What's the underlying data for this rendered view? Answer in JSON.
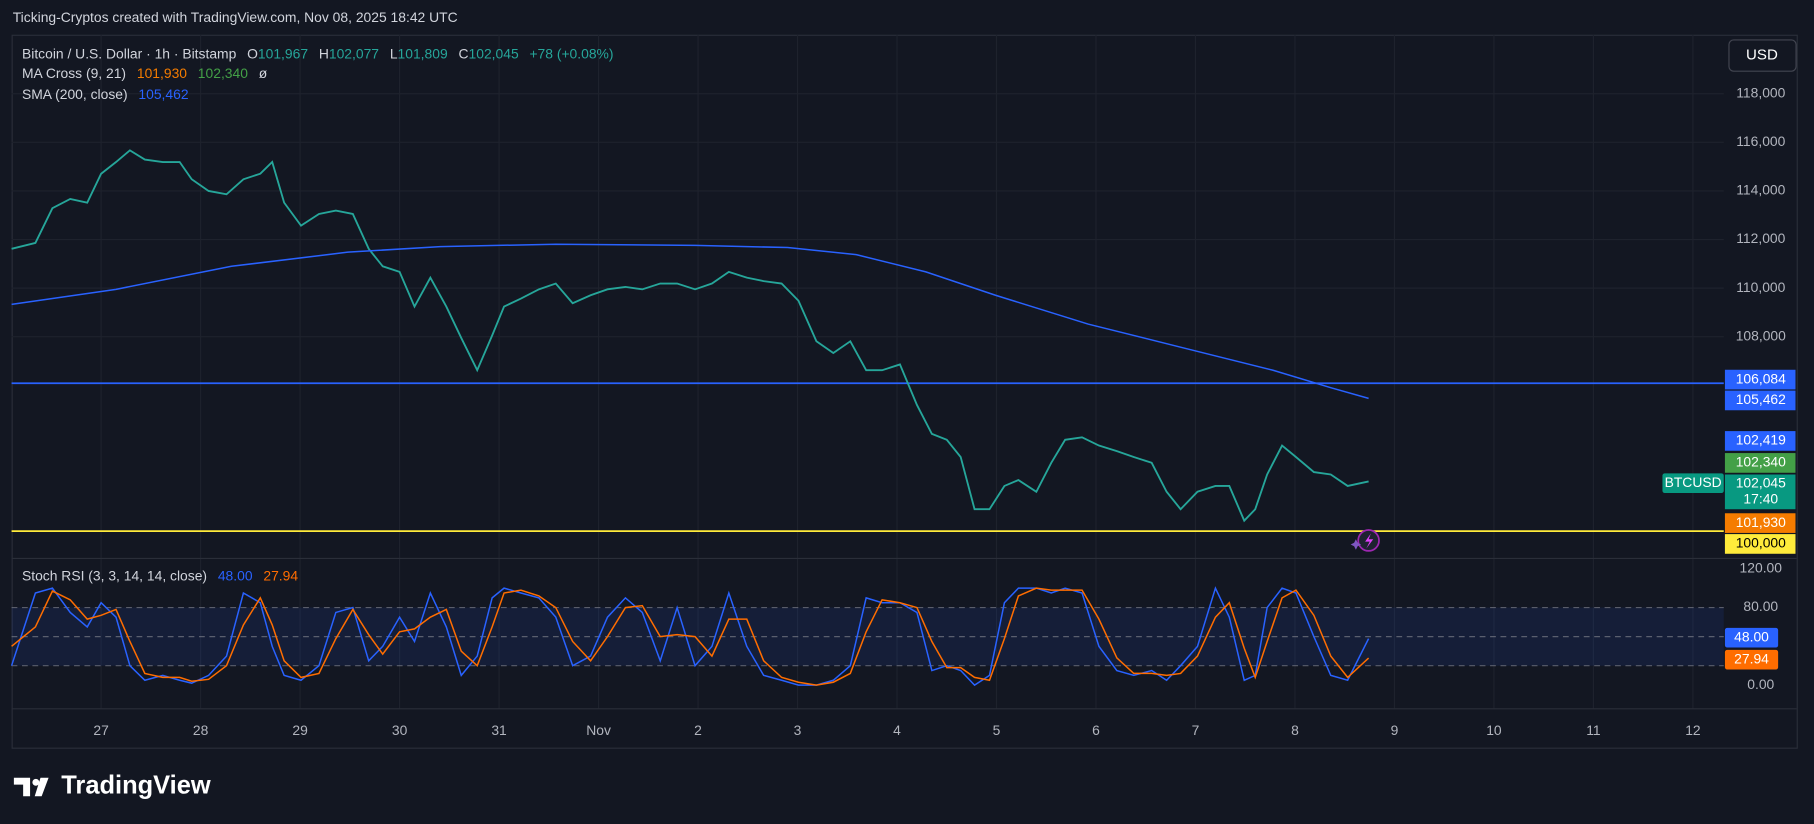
{
  "header": "Ticking-Cryptos created with TradingView.com, Nov 08, 2025 18:42 UTC",
  "currency_button": "USD",
  "brand": "TradingView",
  "legend": {
    "symbol": "Bitcoin / U.S. Dollar · 1h · Bitstamp",
    "ohlc": [
      {
        "key": "O",
        "value": "101,967"
      },
      {
        "key": "H",
        "value": "102,077"
      },
      {
        "key": "L",
        "value": "101,809"
      },
      {
        "key": "C",
        "value": "102,045"
      }
    ],
    "change": "+78 (+0.08%)",
    "ma_name": "MA Cross (9, 21)",
    "ma_fast": "101,930",
    "ma_slow": "102,340",
    "ma_extra": "ø",
    "sma_name": "SMA (200, close)",
    "sma_value": "105,462"
  },
  "chart_data": [
    {
      "type": "line",
      "xlim": [
        26.1,
        43.31
      ],
      "xticks": [
        {
          "value": 27,
          "label": "27"
        },
        {
          "value": 28,
          "label": "28"
        },
        {
          "value": 29,
          "label": "29"
        },
        {
          "value": 30,
          "label": "30"
        },
        {
          "value": 31,
          "label": "31"
        },
        {
          "value": 32,
          "label": "Nov"
        },
        {
          "value": 33,
          "label": "2"
        },
        {
          "value": 34,
          "label": "3"
        },
        {
          "value": 35,
          "label": "4"
        },
        {
          "value": 36,
          "label": "5"
        },
        {
          "value": 37,
          "label": "6"
        },
        {
          "value": 38,
          "label": "7"
        },
        {
          "value": 39,
          "label": "8"
        },
        {
          "value": 40,
          "label": "9"
        },
        {
          "value": 41,
          "label": "10"
        },
        {
          "value": 42,
          "label": "11"
        },
        {
          "value": 43,
          "label": "12"
        }
      ],
      "ylim": [
        98900,
        120430
      ],
      "yticks": [
        {
          "value": 108000,
          "label": "108,000"
        },
        {
          "value": 110000,
          "label": "110,000"
        },
        {
          "value": 112000,
          "label": "112,000"
        },
        {
          "value": 114000,
          "label": "114,000"
        },
        {
          "value": 116000,
          "label": "116,000"
        },
        {
          "value": 118000,
          "label": "118,000"
        }
      ],
      "grid": true,
      "hlines": [
        {
          "value": 106084,
          "color": "#2962ff"
        },
        {
          "value": 100000,
          "color": "#ffeb3b"
        }
      ],
      "series": [
        {
          "name": "BTCUSD",
          "color": "#26a69a",
          "x": [
            26.1,
            26.34,
            26.51,
            26.69,
            26.86,
            27,
            27.15,
            27.29,
            27.44,
            27.62,
            27.79,
            27.91,
            28.08,
            28.26,
            28.43,
            28.6,
            28.72,
            28.84,
            29.01,
            29.19,
            29.36,
            29.53,
            29.69,
            29.83,
            30,
            30.15,
            30.31,
            30.47,
            30.62,
            30.78,
            30.93,
            31.05,
            31.22,
            31.4,
            31.57,
            31.74,
            31.92,
            32.09,
            32.27,
            32.44,
            32.62,
            32.79,
            32.97,
            33.14,
            33.31,
            33.49,
            33.66,
            33.84,
            34.01,
            34.19,
            34.36,
            34.53,
            34.69,
            34.85,
            35.03,
            35.2,
            35.35,
            35.5,
            35.64,
            35.78,
            35.93,
            36.08,
            36.22,
            36.4,
            36.55,
            36.69,
            36.86,
            37.03,
            37.21,
            37.38,
            37.56,
            37.71,
            37.85,
            38.02,
            38.2,
            38.34,
            38.49,
            38.6,
            38.72,
            38.87,
            39.01,
            39.19,
            39.36,
            39.53,
            39.74
          ],
          "values": [
            111620,
            111860,
            113290,
            113670,
            113520,
            114710,
            115190,
            115670,
            115290,
            115190,
            115190,
            114480,
            114000,
            113860,
            114480,
            114710,
            115190,
            113520,
            112570,
            113050,
            113190,
            113050,
            111620,
            110900,
            110670,
            109240,
            110430,
            109240,
            107950,
            106620,
            108050,
            109240,
            109570,
            109950,
            110190,
            109380,
            109710,
            109950,
            110050,
            109950,
            110190,
            110190,
            109950,
            110190,
            110670,
            110430,
            110290,
            110190,
            109480,
            107810,
            107330,
            107810,
            106620,
            106620,
            106860,
            105190,
            104000,
            103760,
            103050,
            100900,
            100900,
            101860,
            102100,
            101620,
            102810,
            103760,
            103860,
            103520,
            103290,
            103050,
            102810,
            101620,
            100900,
            101620,
            101860,
            101860,
            100430,
            100900,
            102330,
            103520,
            103050,
            102430,
            102330,
            101860,
            102045
          ]
        },
        {
          "name": "SMA (200, close)",
          "color": "#2962ff",
          "x": [
            26.1,
            27.15,
            28.31,
            29.48,
            30.41,
            31.57,
            32.97,
            33.9,
            34.59,
            35.29,
            35.99,
            36.92,
            37.85,
            38.78,
            39.36,
            39.74
          ],
          "values": [
            109330,
            109950,
            110900,
            111480,
            111710,
            111810,
            111760,
            111670,
            111380,
            110670,
            109710,
            108520,
            107570,
            106620,
            105900,
            105462
          ]
        }
      ],
      "axis_labels": [
        {
          "label": "106,084",
          "color": "#2962ff"
        },
        {
          "label": "105,462",
          "color": "#2962ff"
        },
        {
          "label": "102,419",
          "color": "#2962ff"
        },
        {
          "label": "102,340",
          "color": "#43a047"
        },
        {
          "label": "102,045",
          "color": "#089981",
          "symbol": "BTCUSD",
          "time": "17:40"
        },
        {
          "label": "101,930",
          "color": "#f57c00"
        },
        {
          "label": "100,000",
          "color": "#ffeb3b",
          "text_color": "#000000"
        }
      ]
    },
    {
      "type": "line",
      "title": "Stoch RSI (3, 3, 14, 14, close)",
      "xlim": [
        26.1,
        43.31
      ],
      "ylim": [
        -23.9,
        130.1
      ],
      "yticks": [
        {
          "value": 0,
          "label": "0.00"
        },
        {
          "value": 80,
          "label": "80.00"
        },
        {
          "value": 120,
          "label": "120.00"
        }
      ],
      "bands": [
        80,
        50,
        20
      ],
      "series": [
        {
          "name": "K",
          "color": "#2962ff",
          "x": [
            26.1,
            26.34,
            26.51,
            26.69,
            26.86,
            27,
            27.15,
            27.29,
            27.44,
            27.62,
            27.79,
            27.91,
            28.08,
            28.26,
            28.43,
            28.6,
            28.72,
            28.84,
            29.01,
            29.19,
            29.36,
            29.53,
            29.69,
            29.83,
            30,
            30.15,
            30.31,
            30.47,
            30.62,
            30.78,
            30.93,
            31.05,
            31.22,
            31.4,
            31.57,
            31.74,
            31.92,
            32.09,
            32.27,
            32.44,
            32.62,
            32.79,
            32.97,
            33.14,
            33.31,
            33.49,
            33.66,
            33.84,
            34.01,
            34.19,
            34.36,
            34.53,
            34.69,
            34.85,
            35.03,
            35.2,
            35.35,
            35.5,
            35.64,
            35.78,
            35.93,
            36.08,
            36.22,
            36.4,
            36.55,
            36.69,
            36.86,
            37.03,
            37.21,
            37.38,
            37.56,
            37.71,
            37.85,
            38.02,
            38.2,
            38.34,
            38.49,
            38.6,
            38.72,
            38.87,
            39.01,
            39.19,
            39.36,
            39.53,
            39.74
          ],
          "values": [
            20,
            95,
            100,
            75,
            60,
            85,
            70,
            20,
            5,
            10,
            5,
            2,
            10,
            30,
            95,
            85,
            40,
            10,
            5,
            20,
            75,
            80,
            25,
            40,
            70,
            45,
            95,
            60,
            10,
            30,
            90,
            100,
            95,
            90,
            70,
            20,
            30,
            70,
            90,
            75,
            25,
            80,
            20,
            40,
            95,
            40,
            10,
            5,
            0,
            0,
            5,
            20,
            90,
            85,
            85,
            75,
            15,
            20,
            15,
            0,
            10,
            85,
            100,
            100,
            95,
            100,
            95,
            40,
            15,
            10,
            15,
            5,
            20,
            40,
            100,
            70,
            5,
            10,
            80,
            100,
            95,
            50,
            10,
            5,
            48
          ]
        },
        {
          "name": "D",
          "color": "#ff6d00",
          "x": [
            26.1,
            26.34,
            26.51,
            26.69,
            26.86,
            27,
            27.15,
            27.29,
            27.44,
            27.62,
            27.79,
            27.91,
            28.08,
            28.26,
            28.43,
            28.6,
            28.72,
            28.84,
            29.01,
            29.19,
            29.36,
            29.53,
            29.69,
            29.83,
            30,
            30.15,
            30.31,
            30.47,
            30.62,
            30.78,
            30.93,
            31.05,
            31.22,
            31.4,
            31.57,
            31.74,
            31.92,
            32.09,
            32.27,
            32.44,
            32.62,
            32.79,
            32.97,
            33.14,
            33.31,
            33.49,
            33.66,
            33.84,
            34.01,
            34.19,
            34.36,
            34.53,
            34.69,
            34.85,
            35.03,
            35.2,
            35.35,
            35.5,
            35.64,
            35.78,
            35.93,
            36.08,
            36.22,
            36.4,
            36.55,
            36.69,
            36.86,
            37.03,
            37.21,
            37.38,
            37.56,
            37.71,
            37.85,
            38.02,
            38.2,
            38.34,
            38.49,
            38.6,
            38.72,
            38.87,
            39.01,
            39.19,
            39.36,
            39.53,
            39.74
          ],
          "values": [
            40,
            60,
            97,
            88,
            68,
            72,
            78,
            45,
            12,
            8,
            8,
            4,
            6,
            20,
            62,
            90,
            62,
            25,
            8,
            12,
            48,
            78,
            52,
            32,
            55,
            58,
            70,
            78,
            35,
            20,
            60,
            95,
            98,
            92,
            80,
            45,
            25,
            50,
            80,
            82,
            50,
            52,
            50,
            30,
            68,
            68,
            25,
            8,
            3,
            0,
            3,
            12,
            55,
            88,
            85,
            80,
            45,
            18,
            18,
            8,
            5,
            48,
            92,
            100,
            98,
            98,
            98,
            68,
            28,
            12,
            12,
            10,
            12,
            30,
            70,
            85,
            38,
            8,
            45,
            90,
            98,
            72,
            30,
            8,
            27.94
          ]
        }
      ],
      "axis_labels": [
        {
          "label": "48.00",
          "color": "#2962ff"
        },
        {
          "label": "27.94",
          "color": "#ff6d00"
        }
      ]
    }
  ]
}
